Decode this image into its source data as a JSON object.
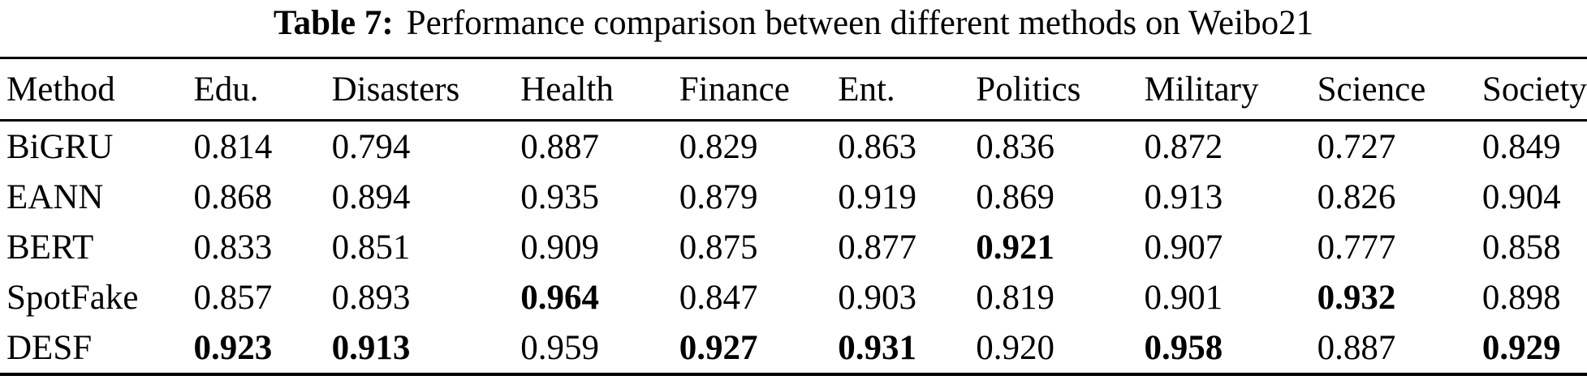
{
  "caption": {
    "label": "Table 7:",
    "text": "Performance comparison between different methods on Weibo21"
  },
  "chart_data": {
    "type": "table",
    "title": "Table 7: Performance comparison between different methods on Weibo21",
    "columns": [
      "Method",
      "Edu.",
      "Disasters",
      "Health",
      "Finance",
      "Ent.",
      "Politics",
      "Military",
      "Science",
      "Society"
    ],
    "rows": [
      {
        "method": "BiGRU",
        "cells": [
          {
            "value": "0.814",
            "bold": false
          },
          {
            "value": "0.794",
            "bold": false
          },
          {
            "value": "0.887",
            "bold": false
          },
          {
            "value": "0.829",
            "bold": false
          },
          {
            "value": "0.863",
            "bold": false
          },
          {
            "value": "0.836",
            "bold": false
          },
          {
            "value": "0.872",
            "bold": false
          },
          {
            "value": "0.727",
            "bold": false
          },
          {
            "value": "0.849",
            "bold": false
          }
        ]
      },
      {
        "method": "EANN",
        "cells": [
          {
            "value": "0.868",
            "bold": false
          },
          {
            "value": "0.894",
            "bold": false
          },
          {
            "value": "0.935",
            "bold": false
          },
          {
            "value": "0.879",
            "bold": false
          },
          {
            "value": "0.919",
            "bold": false
          },
          {
            "value": "0.869",
            "bold": false
          },
          {
            "value": "0.913",
            "bold": false
          },
          {
            "value": "0.826",
            "bold": false
          },
          {
            "value": "0.904",
            "bold": false
          }
        ]
      },
      {
        "method": "BERT",
        "cells": [
          {
            "value": "0.833",
            "bold": false
          },
          {
            "value": "0.851",
            "bold": false
          },
          {
            "value": "0.909",
            "bold": false
          },
          {
            "value": "0.875",
            "bold": false
          },
          {
            "value": "0.877",
            "bold": false
          },
          {
            "value": "0.921",
            "bold": true
          },
          {
            "value": "0.907",
            "bold": false
          },
          {
            "value": "0.777",
            "bold": false
          },
          {
            "value": "0.858",
            "bold": false
          }
        ]
      },
      {
        "method": "SpotFake",
        "cells": [
          {
            "value": "0.857",
            "bold": false
          },
          {
            "value": "0.893",
            "bold": false
          },
          {
            "value": "0.964",
            "bold": true
          },
          {
            "value": "0.847",
            "bold": false
          },
          {
            "value": "0.903",
            "bold": false
          },
          {
            "value": "0.819",
            "bold": false
          },
          {
            "value": "0.901",
            "bold": false
          },
          {
            "value": "0.932",
            "bold": true
          },
          {
            "value": "0.898",
            "bold": false
          }
        ]
      },
      {
        "method": "DESF",
        "cells": [
          {
            "value": "0.923",
            "bold": true
          },
          {
            "value": "0.913",
            "bold": true
          },
          {
            "value": "0.959",
            "bold": false
          },
          {
            "value": "0.927",
            "bold": true
          },
          {
            "value": "0.931",
            "bold": true
          },
          {
            "value": "0.920",
            "bold": false
          },
          {
            "value": "0.958",
            "bold": true
          },
          {
            "value": "0.887",
            "bold": false
          },
          {
            "value": "0.929",
            "bold": true
          }
        ]
      }
    ]
  }
}
